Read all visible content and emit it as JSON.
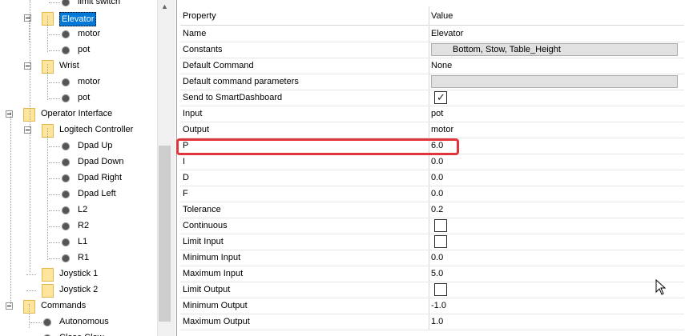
{
  "tree": {
    "items": [
      {
        "label": "limit switch",
        "kind": "gear",
        "depth": 3
      },
      {
        "label": "Elevator",
        "kind": "folder",
        "depth": 2,
        "selected": true,
        "expanded": true
      },
      {
        "label": "motor",
        "kind": "gear",
        "depth": 3
      },
      {
        "label": "pot",
        "kind": "gear",
        "depth": 3
      },
      {
        "label": "Wrist",
        "kind": "folder",
        "depth": 2,
        "expanded": true
      },
      {
        "label": "motor",
        "kind": "gear",
        "depth": 3
      },
      {
        "label": "pot",
        "kind": "gear",
        "depth": 3
      },
      {
        "label": "Operator Interface",
        "kind": "folder",
        "depth": 1,
        "expanded": true
      },
      {
        "label": "Logitech Controller",
        "kind": "folder",
        "depth": 2,
        "expanded": true
      },
      {
        "label": "Dpad Up",
        "kind": "gear",
        "depth": 3
      },
      {
        "label": "Dpad Down",
        "kind": "gear",
        "depth": 3
      },
      {
        "label": "Dpad Right",
        "kind": "gear",
        "depth": 3
      },
      {
        "label": "Dpad Left",
        "kind": "gear",
        "depth": 3
      },
      {
        "label": "L2",
        "kind": "gear",
        "depth": 3
      },
      {
        "label": "R2",
        "kind": "gear",
        "depth": 3
      },
      {
        "label": "L1",
        "kind": "gear",
        "depth": 3
      },
      {
        "label": "R1",
        "kind": "gear",
        "depth": 3
      },
      {
        "label": "Joystick 1",
        "kind": "folder",
        "depth": 2
      },
      {
        "label": "Joystick 2",
        "kind": "folder",
        "depth": 2
      },
      {
        "label": "Commands",
        "kind": "folder",
        "depth": 1,
        "expanded": true
      },
      {
        "label": "Autonomous",
        "kind": "gear",
        "depth": 2
      },
      {
        "label": "Close Claw",
        "kind": "gear",
        "depth": 2
      }
    ]
  },
  "grid": {
    "header": {
      "property": "Property",
      "value": "Value"
    },
    "rows": [
      {
        "property": "Name",
        "value": "Elevator",
        "type": "text"
      },
      {
        "property": "Constants",
        "value": "Bottom, Stow, Table_Height",
        "type": "box"
      },
      {
        "property": "Default Command",
        "value": "None",
        "type": "text"
      },
      {
        "property": "Default command parameters",
        "value": "",
        "type": "box"
      },
      {
        "property": "Send to SmartDashboard",
        "value": "",
        "type": "checkbox",
        "checked": true
      },
      {
        "property": "Input",
        "value": "pot",
        "type": "text"
      },
      {
        "property": "Output",
        "value": "motor",
        "type": "text"
      },
      {
        "property": "P",
        "value": "6.0",
        "type": "text"
      },
      {
        "property": "I",
        "value": "0.0",
        "type": "text"
      },
      {
        "property": "D",
        "value": "0.0",
        "type": "text"
      },
      {
        "property": "F",
        "value": "0.0",
        "type": "text"
      },
      {
        "property": "Tolerance",
        "value": "0.2",
        "type": "text"
      },
      {
        "property": "Continuous",
        "value": "",
        "type": "checkbox",
        "checked": false
      },
      {
        "property": "Limit Input",
        "value": "",
        "type": "checkbox",
        "checked": false
      },
      {
        "property": "Minimum Input",
        "value": "0.0",
        "type": "text"
      },
      {
        "property": "Maximum Input",
        "value": "5.0",
        "type": "text"
      },
      {
        "property": "Limit Output",
        "value": "",
        "type": "checkbox",
        "checked": false
      },
      {
        "property": "Minimum Output",
        "value": "-1.0",
        "type": "text"
      },
      {
        "property": "Maximum Output",
        "value": "1.0",
        "type": "text"
      }
    ]
  },
  "colors": {
    "highlight": "#e0363b",
    "selection": "#0078d7",
    "folder": "#ffe49c"
  },
  "icons": {
    "folder": "folder-icon",
    "component": "gear-icon",
    "collapse": "collapse-toggle-icon",
    "cursor": "mouse-pointer-icon",
    "scroll_up": "chevron-up-icon"
  }
}
